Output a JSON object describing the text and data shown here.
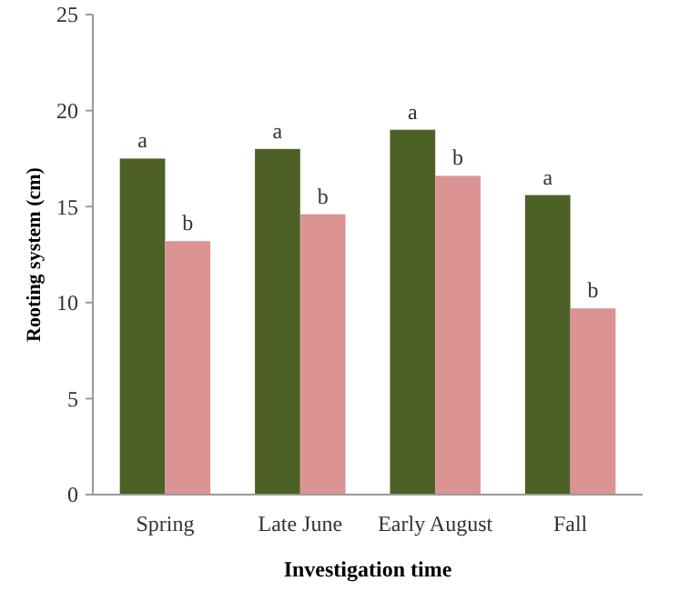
{
  "chart_data": {
    "type": "bar",
    "xlabel": "Investigation time",
    "ylabel": "Rooting system (cm)",
    "categories": [
      "Spring",
      "Late June",
      "Early August",
      "Fall"
    ],
    "series": [
      {
        "color": "#4d6126",
        "values": [
          17.5,
          18.0,
          19.0,
          15.6
        ],
        "value_labels": [
          "a",
          "a",
          "a",
          "a"
        ]
      },
      {
        "color": "#db9393",
        "values": [
          13.2,
          14.6,
          16.6,
          9.7
        ],
        "value_labels": [
          "b",
          "b",
          "b",
          "b"
        ]
      }
    ],
    "ylim": [
      0,
      25
    ],
    "yticks": [
      0,
      5,
      10,
      15,
      20,
      25
    ],
    "grid": false
  }
}
